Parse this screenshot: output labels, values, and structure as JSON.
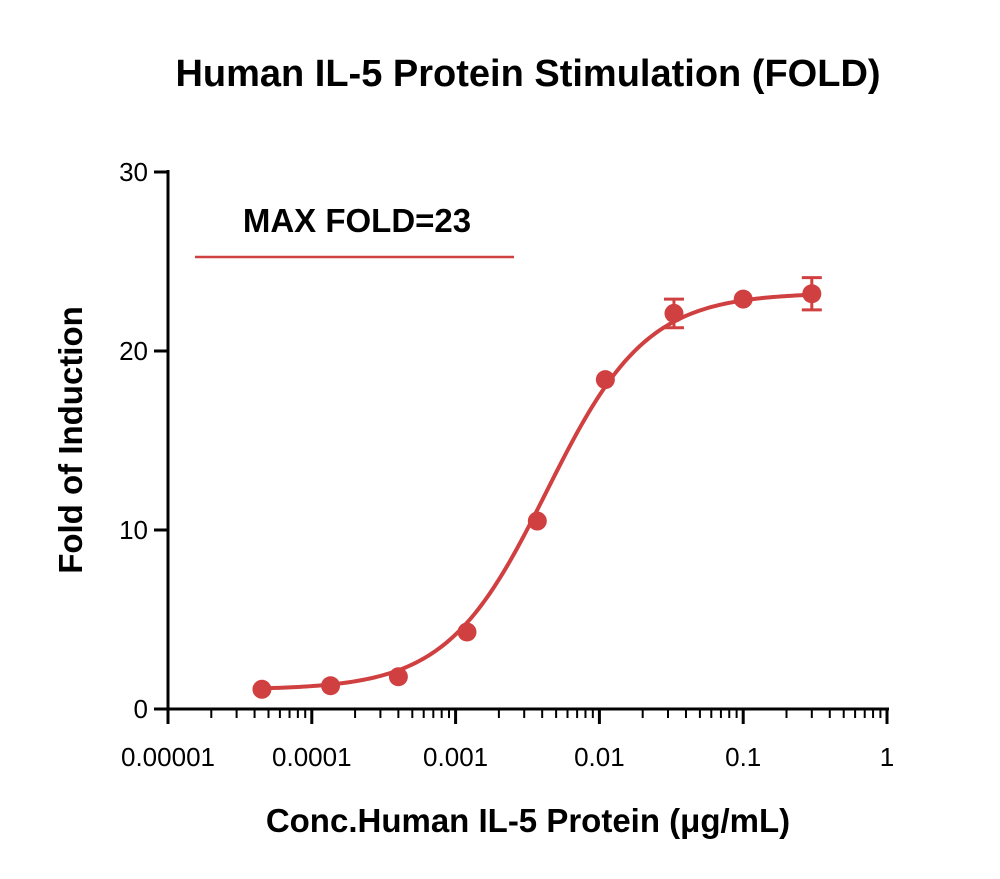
{
  "chart_data": {
    "type": "scatter",
    "title": "Human IL-5 Protein Stimulation (FOLD)",
    "xlabel": "Conc.Human IL-5 Protein (μg/mL)",
    "ylabel": "Fold of Induction",
    "xscale": "log",
    "xlim": [
      1e-05,
      1
    ],
    "ylim": [
      0,
      30
    ],
    "xticks": [
      {
        "value": 1e-05,
        "label": "0.00001"
      },
      {
        "value": 0.0001,
        "label": "0.0001"
      },
      {
        "value": 0.001,
        "label": "0.001"
      },
      {
        "value": 0.01,
        "label": "0.01"
      },
      {
        "value": 0.1,
        "label": "0.1"
      },
      {
        "value": 1,
        "label": "1"
      }
    ],
    "yticks": [
      {
        "value": 0,
        "label": "0"
      },
      {
        "value": 10,
        "label": "10"
      },
      {
        "value": 20,
        "label": "20"
      },
      {
        "value": 30,
        "label": "30"
      }
    ],
    "grid": false,
    "series": [
      {
        "color": "#d04040",
        "points": [
          {
            "x": 4.5e-05,
            "y": 1.1,
            "err": 0
          },
          {
            "x": 0.000135,
            "y": 1.3,
            "err": 0
          },
          {
            "x": 0.0004,
            "y": 1.8,
            "err": 0
          },
          {
            "x": 0.0012,
            "y": 4.3,
            "err": 0
          },
          {
            "x": 0.0037,
            "y": 10.5,
            "err": 0
          },
          {
            "x": 0.011,
            "y": 18.4,
            "err": 0
          },
          {
            "x": 0.033,
            "y": 22.1,
            "err": 0.8
          },
          {
            "x": 0.1,
            "y": 22.9,
            "err": 0
          },
          {
            "x": 0.3,
            "y": 23.2,
            "err": 0.9
          }
        ]
      }
    ],
    "annotation": {
      "text": "MAX FOLD=23",
      "color": "#d04040"
    }
  }
}
